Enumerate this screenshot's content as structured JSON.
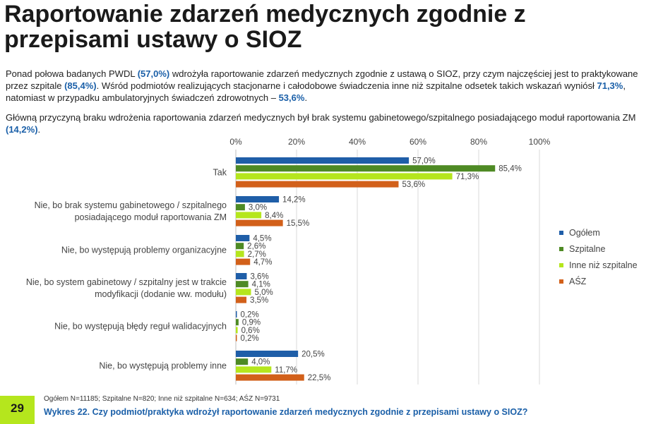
{
  "title": "Raportowanie zdarzeń medycznych zgodnie z przepisami ustawy o SIOZ",
  "paragraph1": {
    "t1": "Ponad połowa badanych PWDL ",
    "v1": "(57,0%)",
    "t2": " wdrożyła raportowanie zdarzeń medycznych zgodnie z ustawą o SIOZ, przy czym najczęściej jest to praktykowane przez szpitale ",
    "v2": "(85,4%)",
    "t3": ". Wśród podmiotów realizujących stacjonarne i całodobowe świadczenia inne niż szpitalne odsetek takich wskazań wyniósł ",
    "v3": "71,3%",
    "t4": ", natomiast w przypadku ambulatoryjnych świadczeń zdrowotnych – ",
    "v4": "53,6%",
    "t5": "."
  },
  "paragraph2": {
    "t1": "Główną przyczyną braku wdrożenia raportowania zdarzeń medycznych był brak systemu gabinetowego/szpitalnego posiadającego moduł raportowania ZM ",
    "v1": "(14,2%)",
    "t2": "."
  },
  "chart_data": {
    "type": "bar",
    "orientation": "horizontal",
    "categories": [
      [
        "Tak"
      ],
      [
        "Nie, bo brak systemu gabinetowego / szpitalnego",
        "posiadającego moduł raportowania ZM"
      ],
      [
        "Nie, bo występują problemy organizacyjne"
      ],
      [
        "Nie, bo system gabinetowy / szpitalny jest w trakcie",
        "modyfikacji (dodanie ww. modułu)"
      ],
      [
        "Nie, bo występują błędy reguł walidacyjnych"
      ],
      [
        "Nie, bo występują problemy inne"
      ]
    ],
    "series": [
      {
        "name": "Ogółem",
        "color": "#1f5ea8",
        "values": [
          57.0,
          14.2,
          4.5,
          3.6,
          0.2,
          20.5
        ],
        "labels": [
          "57,0%",
          "14,2%",
          "4,5%",
          "3,6%",
          "0,2%",
          "20,5%"
        ]
      },
      {
        "name": "Szpitalne",
        "color": "#4e8a24",
        "values": [
          85.4,
          3.0,
          2.6,
          4.1,
          0.9,
          4.0
        ],
        "labels": [
          "85,4%",
          "3,0%",
          "2,6%",
          "4,1%",
          "0,9%",
          "4,0%"
        ]
      },
      {
        "name": "Inne niż szpitalne",
        "color": "#b5e61d",
        "values": [
          71.3,
          8.4,
          2.7,
          5.0,
          0.6,
          11.7
        ],
        "labels": [
          "71,3%",
          "8,4%",
          "2,7%",
          "5,0%",
          "0,6%",
          "11,7%"
        ]
      },
      {
        "name": "AŚZ",
        "color": "#d2601a",
        "values": [
          53.6,
          15.5,
          4.7,
          3.5,
          0.2,
          22.5
        ],
        "labels": [
          "53,6%",
          "15,5%",
          "4,7%",
          "3,5%",
          "0,2%",
          "22,5%"
        ]
      }
    ],
    "xlim": [
      0,
      100
    ],
    "xticks": [
      0,
      20,
      40,
      60,
      80,
      100
    ],
    "xtick_labels": [
      "0%",
      "20%",
      "40%",
      "60%",
      "80%",
      "100%"
    ],
    "grid": true,
    "legend_position": "right"
  },
  "footer": {
    "note": "Ogółem N=11185; Szpitalne N=820; Inne niż szpitalne N=634; AŚZ N=9731",
    "caption": "Wykres 22. Czy podmiot/praktyka wdrożył raportowanie zdarzeń medycznych zgodnie z przepisami ustawy o SIOZ?",
    "page_number": "29"
  }
}
